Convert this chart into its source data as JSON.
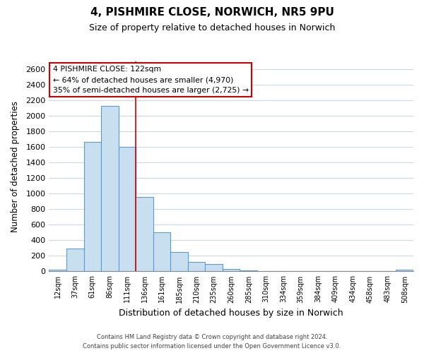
{
  "title": "4, PISHMIRE CLOSE, NORWICH, NR5 9PU",
  "subtitle": "Size of property relative to detached houses in Norwich",
  "xlabel": "Distribution of detached houses by size in Norwich",
  "ylabel": "Number of detached properties",
  "bar_labels": [
    "12sqm",
    "37sqm",
    "61sqm",
    "86sqm",
    "111sqm",
    "136sqm",
    "161sqm",
    "185sqm",
    "210sqm",
    "235sqm",
    "260sqm",
    "285sqm",
    "310sqm",
    "334sqm",
    "359sqm",
    "384sqm",
    "409sqm",
    "434sqm",
    "458sqm",
    "483sqm",
    "508sqm"
  ],
  "bar_values": [
    20,
    295,
    1670,
    2130,
    1600,
    960,
    500,
    250,
    120,
    95,
    30,
    15,
    8,
    8,
    8,
    5,
    5,
    5,
    5,
    5,
    20
  ],
  "bar_fill_color": "#c8dff0",
  "bar_edge_color": "#5b9bd5",
  "vline_color": "#cc0000",
  "vline_x_index": 4,
  "annotation_title": "4 PISHMIRE CLOSE: 122sqm",
  "annotation_line1": "← 64% of detached houses are smaller (4,970)",
  "annotation_line2": "35% of semi-detached houses are larger (2,725) →",
  "annotation_box_color": "white",
  "annotation_box_edge_color": "#cc0000",
  "ylim": [
    0,
    2700
  ],
  "yticks": [
    0,
    200,
    400,
    600,
    800,
    1000,
    1200,
    1400,
    1600,
    1800,
    2000,
    2200,
    2400,
    2600
  ],
  "footer_line1": "Contains HM Land Registry data © Crown copyright and database right 2024.",
  "footer_line2": "Contains public sector information licensed under the Open Government Licence v3.0.",
  "bg_color": "#ffffff",
  "grid_color": "#c8d8e8"
}
